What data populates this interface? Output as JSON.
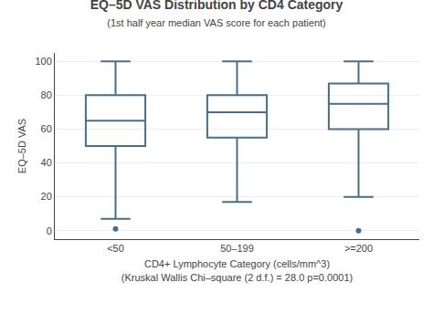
{
  "chart_data": {
    "type": "box",
    "title": "EQ–5D VAS Distribution by CD4 Category",
    "subtitle": "(1st half year median VAS score for each patient)",
    "xlabel": "CD4+ Lymphocyte Category (cells/mm^3)\n(Kruskal Wallis Chi–square (2 d.f.) = 28.0 p=0.0001)",
    "ylabel": "EQ–5D VAS",
    "categories": [
      "<50",
      "50–199",
      ">=200"
    ],
    "color": "#4a6e8a",
    "ylim": [
      -5,
      105
    ],
    "yticks": [
      0,
      20,
      40,
      60,
      80,
      100
    ],
    "grid": true,
    "boxes": [
      {
        "q1": 50,
        "median": 65,
        "q3": 80,
        "whislo": 7,
        "whishi": 100,
        "fliers": [
          1
        ]
      },
      {
        "q1": 55,
        "median": 70,
        "q3": 80,
        "whislo": 17,
        "whishi": 100,
        "fliers": []
      },
      {
        "q1": 60,
        "median": 75,
        "q3": 87,
        "whislo": 20,
        "whishi": 100,
        "fliers": [
          0
        ]
      }
    ]
  }
}
